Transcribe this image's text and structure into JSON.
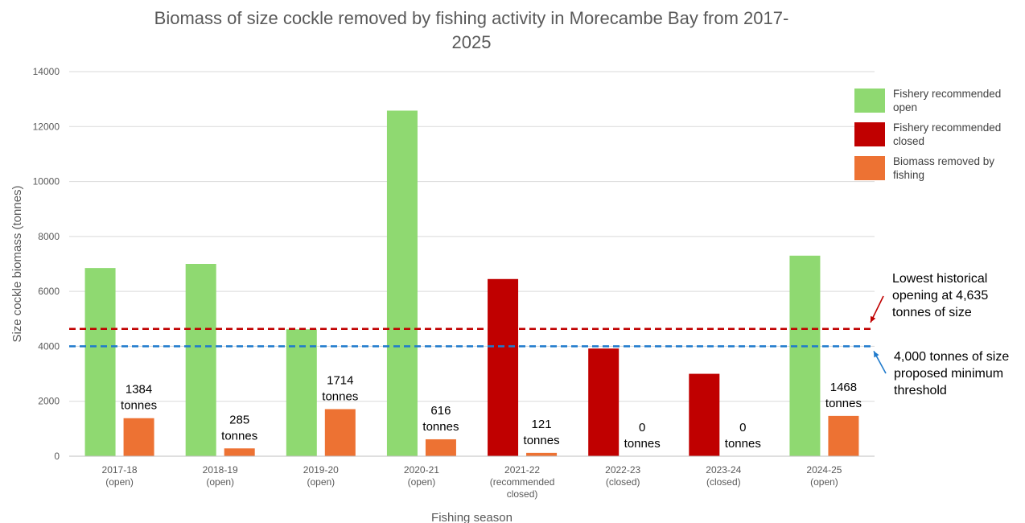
{
  "chart_data": {
    "type": "bar",
    "title_line1": "Biomass of size cockle removed by fishing activity in Morecambe Bay from 2017-",
    "title_line2": "2025",
    "xlabel": "Fishing season",
    "ylabel": "Size cockle biomass (tonnes)",
    "ylim": [
      0,
      14000
    ],
    "yticks": [
      0,
      2000,
      4000,
      6000,
      8000,
      10000,
      12000,
      14000
    ],
    "grid": true,
    "legend_position": "right",
    "categories": [
      [
        "2017-18",
        "(open)"
      ],
      [
        "2018-19",
        "(open)"
      ],
      [
        "2019-20",
        "(open)"
      ],
      [
        "2020-21",
        "(open)"
      ],
      [
        "2021-22",
        "(recommended",
        "closed)"
      ],
      [
        "2022-23",
        "(closed)"
      ],
      [
        "2023-24",
        "(closed)"
      ],
      [
        "2024-25",
        "(open)"
      ]
    ],
    "series": [
      {
        "name": "Size cockle biomass",
        "values": [
          6850,
          7000,
          4620,
          12580,
          6450,
          3920,
          3000,
          7300
        ],
        "status": [
          "open",
          "open",
          "open",
          "open",
          "closed",
          "closed",
          "closed",
          "open"
        ]
      },
      {
        "name": "Biomass removed by fishing",
        "values": [
          1384,
          285,
          1714,
          616,
          121,
          0,
          0,
          1468
        ],
        "labels": [
          [
            "1384",
            "tonnes"
          ],
          [
            "285",
            "tonnes"
          ],
          [
            "1714",
            "tonnes"
          ],
          [
            "616",
            "tonnes"
          ],
          [
            "121",
            "tonnes"
          ],
          [
            "0",
            "tonnes"
          ],
          [
            "0",
            "tonnes"
          ],
          [
            "1468",
            "tonnes"
          ]
        ]
      }
    ],
    "legend": [
      {
        "label": "Fishery recommended open",
        "color": "#8FD971"
      },
      {
        "label": "Fishery recommended closed",
        "color": "#C00000"
      },
      {
        "label": "Biomass removed by fishing",
        "color": "#ED7233"
      }
    ],
    "reference_lines": [
      {
        "value": 4635,
        "color": "#C00000",
        "annotation": [
          "Lowest historical",
          "opening at 4,635",
          "tonnes of size"
        ]
      },
      {
        "value": 4000,
        "color": "#1F7ACC",
        "annotation": [
          "4,000 tonnes of size",
          "proposed minimum",
          "threshold"
        ]
      }
    ],
    "colors": {
      "open": "#8FD971",
      "closed": "#C00000",
      "removed": "#ED7233",
      "grid": "#D9D9D9"
    }
  }
}
